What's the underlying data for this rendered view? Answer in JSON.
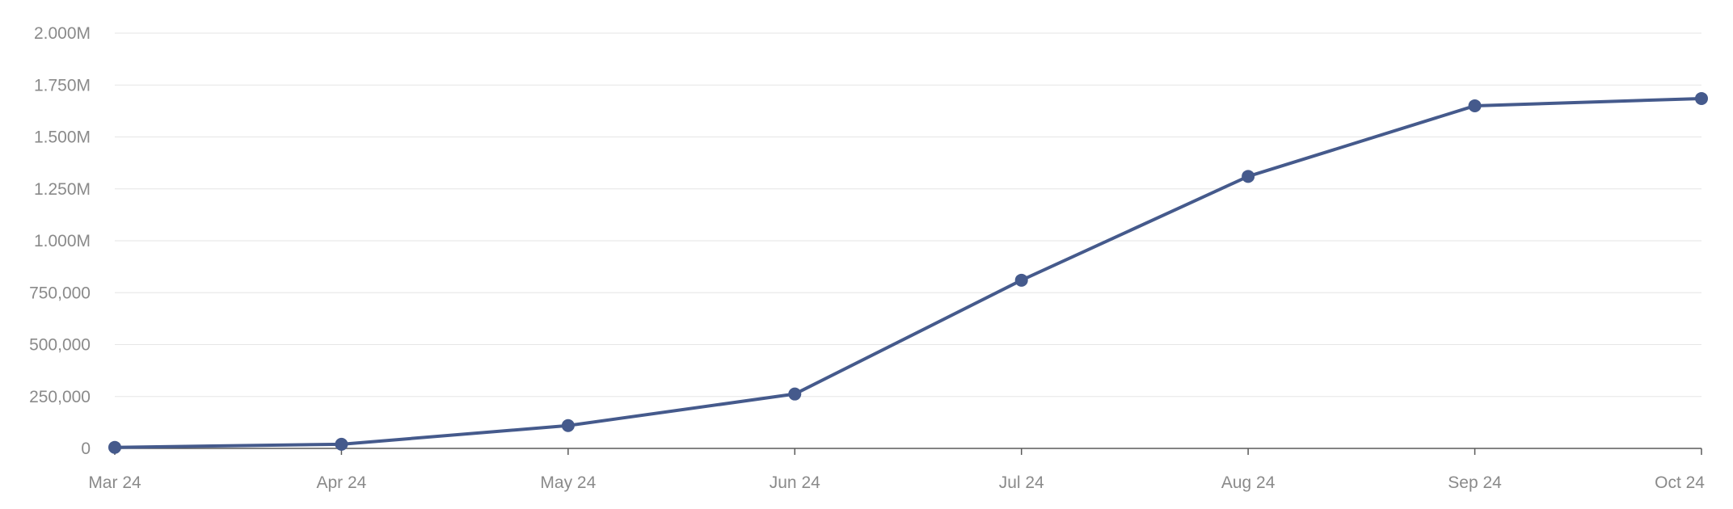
{
  "chart_data": {
    "type": "line",
    "title": "",
    "xlabel": "",
    "ylabel": "",
    "x": [
      "Mar 24",
      "Apr 24",
      "May 24",
      "Jun 24",
      "Jul 24",
      "Aug 24",
      "Sep 24",
      "Oct 24"
    ],
    "series": [
      {
        "values": [
          5000,
          20000,
          110000,
          262000,
          810000,
          1310000,
          1650000,
          1685000
        ],
        "color": "#455a8c"
      }
    ],
    "ylim": [
      0,
      2000000
    ],
    "y_ticks": [
      0,
      250000,
      500000,
      750000,
      1000000,
      1250000,
      1500000,
      1750000,
      2000000
    ],
    "y_tick_labels": [
      "0",
      "250,000",
      "500,000",
      "750,000",
      "1.000M",
      "1.250M",
      "1.500M",
      "1.750M",
      "2.000M"
    ],
    "grid": true,
    "legend": "none"
  }
}
